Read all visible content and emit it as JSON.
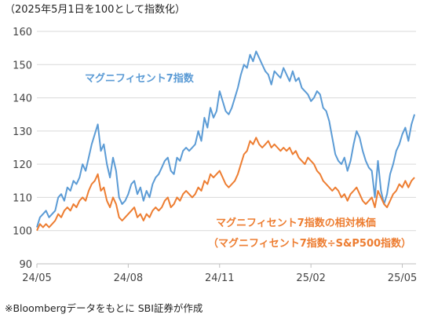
{
  "chart_data": {
    "type": "line",
    "title": "（2025年5月1日を100として指数化）",
    "source_note": "※Bloombergデータをもとに SBI証券が作成",
    "x_tick_labels": [
      "24/05",
      "24/08",
      "24/11",
      "25/02",
      "25/05"
    ],
    "x_ticks": [
      0,
      3,
      6,
      9,
      12
    ],
    "xlim": [
      0,
      12.45
    ],
    "ylim": [
      90,
      160
    ],
    "y_ticks": [
      90,
      100,
      110,
      120,
      130,
      140,
      150,
      160
    ],
    "grid": true,
    "series": [
      {
        "name": "マグニフィセント7指数",
        "color": "#5b9bd5",
        "x": [
          0.0,
          0.1,
          0.2,
          0.3,
          0.4,
          0.5,
          0.6,
          0.7,
          0.8,
          0.9,
          1.0,
          1.1,
          1.2,
          1.3,
          1.4,
          1.5,
          1.6,
          1.7,
          1.8,
          1.9,
          2.0,
          2.1,
          2.2,
          2.3,
          2.4,
          2.5,
          2.6,
          2.7,
          2.8,
          2.9,
          3.0,
          3.1,
          3.2,
          3.3,
          3.4,
          3.5,
          3.6,
          3.7,
          3.8,
          3.9,
          4.0,
          4.1,
          4.2,
          4.3,
          4.4,
          4.5,
          4.6,
          4.7,
          4.8,
          4.9,
          5.0,
          5.1,
          5.2,
          5.3,
          5.4,
          5.5,
          5.6,
          5.7,
          5.8,
          5.9,
          6.0,
          6.1,
          6.2,
          6.3,
          6.4,
          6.5,
          6.6,
          6.7,
          6.8,
          6.9,
          7.0,
          7.1,
          7.2,
          7.3,
          7.4,
          7.5,
          7.6,
          7.7,
          7.8,
          7.9,
          8.0,
          8.1,
          8.2,
          8.3,
          8.4,
          8.5,
          8.6,
          8.7,
          8.8,
          8.9,
          9.0,
          9.1,
          9.2,
          9.3,
          9.4,
          9.5,
          9.6,
          9.7,
          9.8,
          9.9,
          10.0,
          10.1,
          10.2,
          10.3,
          10.4,
          10.5,
          10.6,
          10.7,
          10.8,
          10.9,
          11.0,
          11.1,
          11.2,
          11.3,
          11.4,
          11.5,
          11.6,
          11.7,
          11.8,
          11.9,
          12.0,
          12.1,
          12.2,
          12.3,
          12.4
        ],
        "values": [
          101,
          104,
          105,
          106,
          104,
          105,
          106,
          110,
          111,
          109,
          113,
          112,
          115,
          114,
          116,
          120,
          118,
          122,
          126,
          129,
          132,
          124,
          126,
          120,
          116,
          122,
          118,
          110,
          108,
          109,
          111,
          114,
          115,
          111,
          113,
          109,
          112,
          110,
          114,
          116,
          117,
          119,
          121,
          122,
          118,
          117,
          122,
          121,
          124,
          125,
          124,
          125,
          126,
          130,
          127,
          134,
          131,
          137,
          134,
          136,
          142,
          139,
          136,
          135,
          137,
          140,
          143,
          147,
          150,
          149,
          153,
          151,
          154,
          152,
          150,
          148,
          147,
          144,
          148,
          147,
          146,
          149,
          147,
          145,
          148,
          145,
          146,
          143,
          142,
          141,
          139,
          140,
          142,
          141,
          137,
          136,
          133,
          128,
          123,
          121,
          120,
          122,
          118,
          121,
          126,
          130,
          128,
          124,
          121,
          119,
          118,
          110,
          121,
          112,
          108,
          111,
          117,
          120,
          124,
          126,
          129,
          131,
          127,
          132,
          135
        ],
        "label": "マグニフィセント7指数"
      },
      {
        "name": "マグニフィセント7指数の相対株価",
        "color": "#ed7d31",
        "x": [
          0.0,
          0.1,
          0.2,
          0.3,
          0.4,
          0.5,
          0.6,
          0.7,
          0.8,
          0.9,
          1.0,
          1.1,
          1.2,
          1.3,
          1.4,
          1.5,
          1.6,
          1.7,
          1.8,
          1.9,
          2.0,
          2.1,
          2.2,
          2.3,
          2.4,
          2.5,
          2.6,
          2.7,
          2.8,
          2.9,
          3.0,
          3.1,
          3.2,
          3.3,
          3.4,
          3.5,
          3.6,
          3.7,
          3.8,
          3.9,
          4.0,
          4.1,
          4.2,
          4.3,
          4.4,
          4.5,
          4.6,
          4.7,
          4.8,
          4.9,
          5.0,
          5.1,
          5.2,
          5.3,
          5.4,
          5.5,
          5.6,
          5.7,
          5.8,
          5.9,
          6.0,
          6.1,
          6.2,
          6.3,
          6.4,
          6.5,
          6.6,
          6.7,
          6.8,
          6.9,
          7.0,
          7.1,
          7.2,
          7.3,
          7.4,
          7.5,
          7.6,
          7.7,
          7.8,
          7.9,
          8.0,
          8.1,
          8.2,
          8.3,
          8.4,
          8.5,
          8.6,
          8.7,
          8.8,
          8.9,
          9.0,
          9.1,
          9.2,
          9.3,
          9.4,
          9.5,
          9.6,
          9.7,
          9.8,
          9.9,
          10.0,
          10.1,
          10.2,
          10.3,
          10.4,
          10.5,
          10.6,
          10.7,
          10.8,
          10.9,
          11.0,
          11.1,
          11.2,
          11.3,
          11.4,
          11.5,
          11.6,
          11.7,
          11.8,
          11.9,
          12.0,
          12.1,
          12.2,
          12.3,
          12.4
        ],
        "values": [
          100,
          102,
          101,
          102,
          101,
          102,
          103,
          105,
          104,
          106,
          107,
          106,
          108,
          107,
          109,
          110,
          109,
          112,
          114,
          115,
          117,
          112,
          113,
          109,
          107,
          110,
          108,
          104,
          103,
          104,
          105,
          106,
          107,
          104,
          105,
          103,
          105,
          104,
          106,
          107,
          106,
          107,
          109,
          110,
          107,
          108,
          110,
          109,
          111,
          112,
          111,
          110,
          111,
          113,
          112,
          115,
          114,
          117,
          116,
          117,
          118,
          116,
          114,
          113,
          114,
          115,
          117,
          120,
          123,
          124,
          127,
          126,
          128,
          126,
          125,
          126,
          127,
          125,
          126,
          125,
          124,
          125,
          124,
          125,
          123,
          124,
          122,
          121,
          120,
          122,
          121,
          120,
          118,
          117,
          115,
          114,
          113,
          112,
          113,
          112,
          110,
          111,
          109,
          111,
          112,
          113,
          111,
          109,
          108,
          109,
          110,
          107,
          112,
          110,
          108,
          107,
          109,
          111,
          112,
          114,
          113,
          115,
          113,
          115,
          116
        ],
        "label": "マグニフィセント7指数の相対株価",
        "label_line2": "（マグニフィセント7指数÷S&P500指数）"
      }
    ]
  }
}
